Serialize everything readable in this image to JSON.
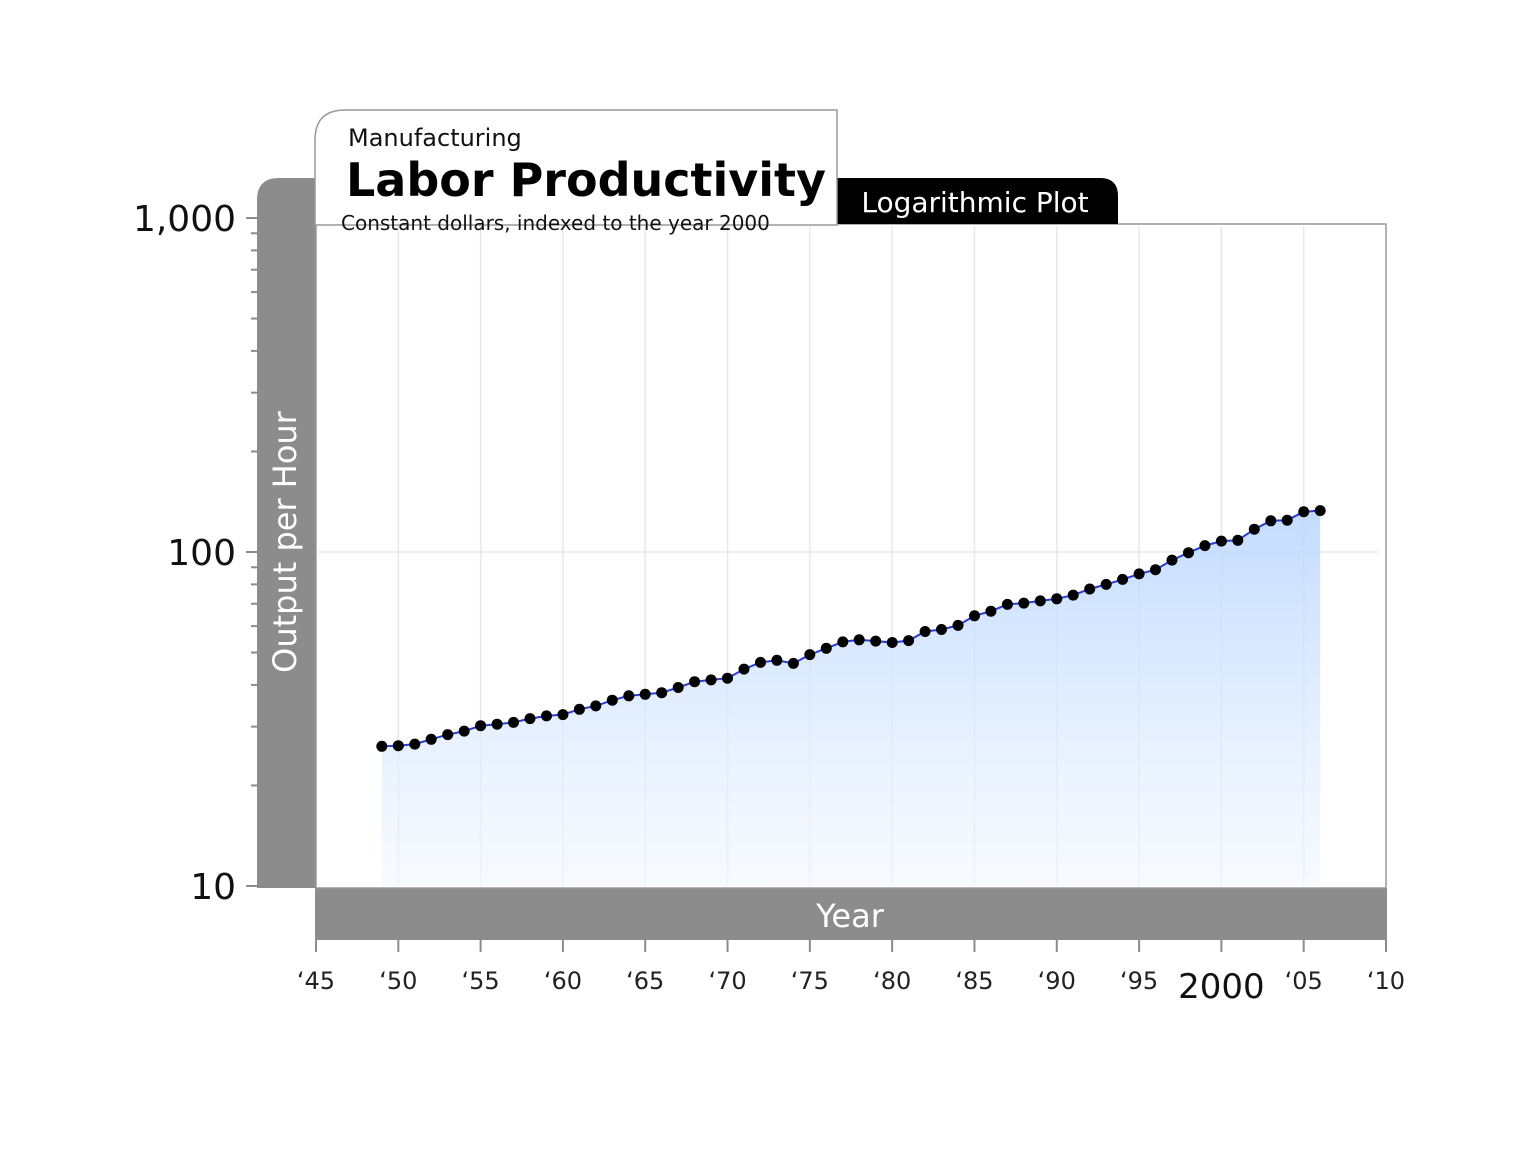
{
  "colors": {
    "band": "#8c8c8c",
    "grid": "#e6e8ef",
    "line": "#2b3bd6",
    "marker": "#000000",
    "area": "#cfe3ff",
    "badge": "#000000"
  },
  "chart_data": {
    "type": "line",
    "supertitle": "Manufacturing",
    "title": "Labor Productivity",
    "subtitle": "Constant dollars, indexed to the year 2000",
    "badge": "Logarithmic Plot",
    "xlabel": "Year",
    "ylabel": "Output per Hour",
    "yscale": "log",
    "ylim": [
      10,
      1000
    ],
    "xlim": [
      1945,
      2010
    ],
    "grid": true,
    "y_ticks": [
      {
        "value": 1000,
        "label": "1,000"
      },
      {
        "value": 100,
        "label": "100"
      },
      {
        "value": 10,
        "label": "10"
      }
    ],
    "x_ticks": [
      {
        "value": 1945,
        "label": "‘45"
      },
      {
        "value": 1950,
        "label": "‘50"
      },
      {
        "value": 1955,
        "label": "‘55"
      },
      {
        "value": 1960,
        "label": "‘60"
      },
      {
        "value": 1965,
        "label": "‘65"
      },
      {
        "value": 1970,
        "label": "‘70"
      },
      {
        "value": 1975,
        "label": "‘75"
      },
      {
        "value": 1980,
        "label": "‘80"
      },
      {
        "value": 1985,
        "label": "‘85"
      },
      {
        "value": 1990,
        "label": "‘90"
      },
      {
        "value": 1995,
        "label": "‘95"
      },
      {
        "value": 2000,
        "label": "2000",
        "emphasis": true
      },
      {
        "value": 2005,
        "label": "‘05"
      },
      {
        "value": 2010,
        "label": "‘10"
      }
    ],
    "x": [
      1949,
      1950,
      1951,
      1952,
      1953,
      1954,
      1955,
      1956,
      1957,
      1958,
      1959,
      1960,
      1961,
      1962,
      1963,
      1964,
      1965,
      1966,
      1967,
      1968,
      1969,
      1970,
      1971,
      1972,
      1973,
      1974,
      1975,
      1976,
      1977,
      1978,
      1979,
      1980,
      1981,
      1982,
      1983,
      1984,
      1985,
      1986,
      1987,
      1988,
      1989,
      1990,
      1991,
      1992,
      1993,
      1994,
      1995,
      1996,
      1997,
      1998,
      1999,
      2000,
      2001,
      2002,
      2003,
      2004,
      2005,
      2006
    ],
    "series": [
      {
        "values": [
          26.2,
          26.3,
          26.6,
          27.5,
          28.4,
          29.1,
          30.2,
          30.5,
          30.9,
          31.7,
          32.3,
          32.6,
          33.8,
          34.6,
          36.0,
          37.1,
          37.5,
          37.9,
          39.3,
          40.9,
          41.4,
          41.9,
          44.6,
          46.7,
          47.4,
          46.4,
          49.3,
          51.5,
          53.8,
          54.6,
          54.1,
          53.6,
          54.3,
          57.8,
          58.6,
          60.3,
          64.4,
          66.5,
          69.7,
          70.3,
          71.4,
          72.4,
          74.3,
          77.5,
          80.0,
          82.8,
          86.0,
          88.5,
          94.6,
          99.5,
          104.5,
          107.8,
          108.4,
          117.0,
          124.0,
          124.5,
          132.0,
          133.0
        ]
      }
    ]
  }
}
